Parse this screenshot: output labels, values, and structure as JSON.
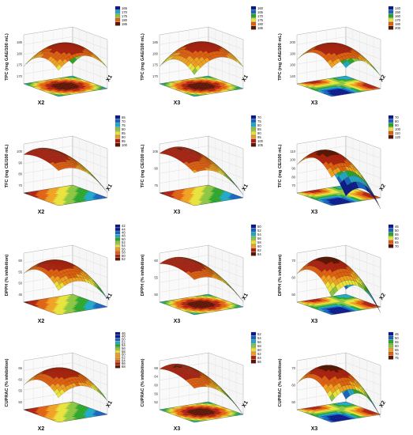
{
  "palette": [
    "#0a1a8a",
    "#1565c0",
    "#1fa8c8",
    "#2aa52a",
    "#8bc53f",
    "#e8e23a",
    "#f0a020",
    "#e06010",
    "#b02010",
    "#5a1505"
  ],
  "chart_data": [
    {
      "id": "r1c1",
      "type": "surface",
      "ylabel": "TPC (mg GAE/100 mL)",
      "xlabel": "X2",
      "x2label": "X1",
      "zticks": [
        "170",
        "175",
        "180",
        "185"
      ],
      "legend": [
        "165",
        "170",
        "175",
        "180",
        "185"
      ],
      "peak": [
        0.45,
        0.6
      ],
      "shape": "dome",
      "contour": "center"
    },
    {
      "id": "r1c2",
      "type": "surface",
      "ylabel": "TPC (mg GAE/100 mL)",
      "xlabel": "X3",
      "x2label": "X1",
      "zticks": [
        "170",
        "175",
        "180",
        "185"
      ],
      "legend": [
        "160",
        "165",
        "170",
        "175",
        "180",
        "185"
      ],
      "peak": [
        0.5,
        0.55
      ],
      "shape": "dome",
      "contour": "center"
    },
    {
      "id": "r1c3",
      "type": "surface",
      "ylabel": "TPC (mg GAE/100 mL)",
      "xlabel": "X3",
      "x2label": "X2",
      "zticks": [
        "140",
        "160",
        "180",
        "200"
      ],
      "legend": [
        "140",
        "150",
        "160",
        "170",
        "180",
        "200"
      ],
      "peak": [
        0.35,
        0.55
      ],
      "shape": "dome",
      "contour": "corner"
    },
    {
      "id": "r2c1",
      "type": "surface",
      "ylabel": "TFC (mg CE/100 mL)",
      "xlabel": "X2",
      "x2label": "X1",
      "zticks": [
        "70",
        "80",
        "90",
        "100"
      ],
      "legend": [
        "65",
        "70",
        "75",
        "80",
        "85",
        "90",
        "95",
        "100"
      ],
      "peak": [
        0.3,
        0.4
      ],
      "shape": "ridge",
      "contour": "diagonal"
    },
    {
      "id": "r2c2",
      "type": "surface",
      "ylabel": "TFC (mg CE/100 mL)",
      "xlabel": "X3",
      "x2label": "X1",
      "zticks": [
        "75",
        "90",
        "105"
      ],
      "legend": [
        "70",
        "75",
        "80",
        "85",
        "90",
        "95",
        "100",
        "105"
      ],
      "peak": [
        0.3,
        0.3
      ],
      "shape": "ridge",
      "contour": "diagonal"
    },
    {
      "id": "r2c3",
      "type": "surface",
      "ylabel": "TFC (mg CE/100 mL)",
      "xlabel": "X3",
      "x2label": "X2",
      "zticks": [
        "70",
        "80",
        "90",
        "100",
        "110"
      ],
      "legend": [
        "70",
        "80",
        "90",
        "100",
        "110",
        "120"
      ],
      "peak": [
        0.25,
        0.5
      ],
      "shape": "spike",
      "contour": "corner"
    },
    {
      "id": "r3c1",
      "type": "surface",
      "ylabel": "DPPH (% inhibition)",
      "xlabel": "X2",
      "x2label": "X1",
      "zticks": [
        "45",
        "50",
        "55",
        "60"
      ],
      "legend": [
        "42",
        "44",
        "46",
        "48",
        "50",
        "52",
        "54",
        "56",
        "58",
        "60",
        "62"
      ],
      "peak": [
        0.35,
        0.45
      ],
      "shape": "dome",
      "contour": "diagonal"
    },
    {
      "id": "r3c2",
      "type": "surface",
      "ylabel": "DPPH (% inhibition)",
      "xlabel": "X3",
      "x2label": "X1",
      "zticks": [
        "50",
        "55",
        "60"
      ],
      "legend": [
        "50",
        "52",
        "54",
        "56",
        "58",
        "60",
        "62",
        "64"
      ],
      "peak": [
        0.3,
        0.4
      ],
      "shape": "ridge",
      "contour": "center"
    },
    {
      "id": "r3c3",
      "type": "surface",
      "ylabel": "DPPH (% inhibition)",
      "xlabel": "X3",
      "x2label": "X2",
      "zticks": [
        "50",
        "60",
        "70"
      ],
      "legend": [
        "45",
        "50",
        "55",
        "60",
        "65",
        "70"
      ],
      "peak": [
        0.35,
        0.4
      ],
      "shape": "spike",
      "contour": "corner"
    },
    {
      "id": "r4c1",
      "type": "surface",
      "ylabel": "CUPRAC (% inhibition)",
      "xlabel": "X2",
      "x2label": "X1",
      "zticks": [
        "50",
        "55",
        "60",
        "65"
      ],
      "legend": [
        "46",
        "48",
        "50",
        "52",
        "54",
        "56",
        "58",
        "60",
        "62",
        "64",
        "66",
        "68"
      ],
      "peak": [
        0.4,
        0.5
      ],
      "shape": "dome",
      "contour": "diagonal"
    },
    {
      "id": "r4c2",
      "type": "surface",
      "ylabel": "CUPRAC (% inhibition)",
      "xlabel": "X3",
      "x2label": "X1",
      "zticks": [
        "52",
        "56",
        "60",
        "64",
        "68"
      ],
      "legend": [
        "52",
        "54",
        "56",
        "58",
        "60",
        "62",
        "64",
        "66"
      ],
      "peak": [
        0.25,
        0.3
      ],
      "shape": "ridge",
      "contour": "center"
    },
    {
      "id": "r4c3",
      "type": "surface",
      "ylabel": "CUPRAC (% inhibition)",
      "xlabel": "X3",
      "x2label": "X2",
      "zticks": [
        "50",
        "60",
        "70"
      ],
      "legend": [
        "45",
        "50",
        "55",
        "60",
        "65",
        "70",
        "75"
      ],
      "peak": [
        0.35,
        0.45
      ],
      "shape": "spike",
      "contour": "corner"
    }
  ]
}
